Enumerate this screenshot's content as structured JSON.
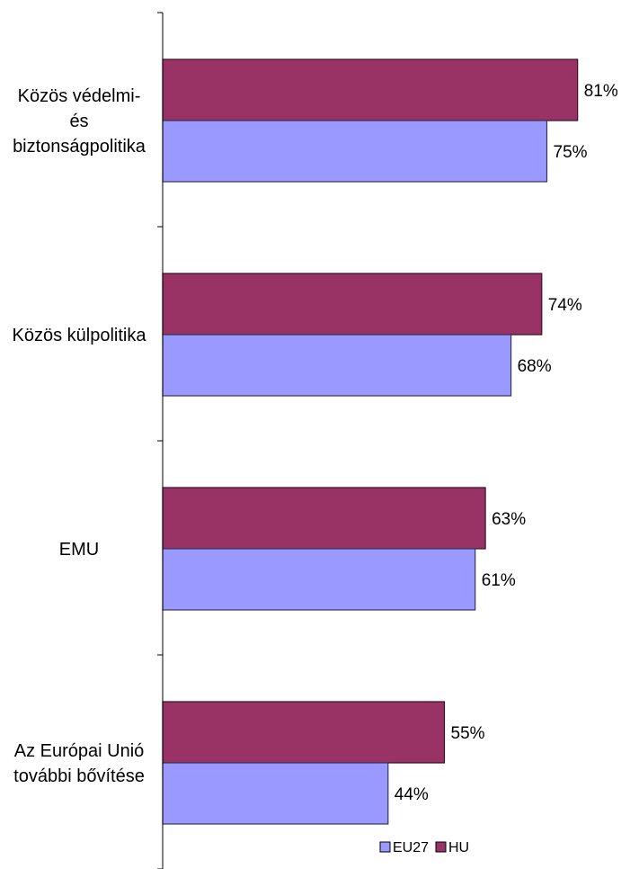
{
  "chart_data": {
    "type": "bar",
    "orientation": "horizontal",
    "title": "",
    "xlabel": "",
    "ylabel": "",
    "categories": [
      "Közös védelmi- és biztonságpolitika",
      "Közös külpolitika",
      "EMU",
      "Az Európai Unió további bővítése"
    ],
    "category_lines": [
      [
        "Közös védelmi-",
        "és",
        "biztonságpolitika"
      ],
      [
        "Közös külpolitika"
      ],
      [
        "EMU"
      ],
      [
        "Az Európai Unió",
        "további bővítése"
      ]
    ],
    "series": [
      {
        "name": "HU",
        "color": "#993366",
        "values": [
          81,
          74,
          63,
          55
        ],
        "labels": [
          "81%",
          "74%",
          "63%",
          "55%"
        ]
      },
      {
        "name": "EU27",
        "color": "#9999ff",
        "values": [
          75,
          68,
          61,
          44
        ],
        "labels": [
          "75%",
          "68%",
          "61%",
          "44%"
        ]
      }
    ],
    "legend": {
      "position": "bottom-right",
      "order": [
        "EU27",
        "HU"
      ]
    },
    "grid": false,
    "xlim": [
      0,
      100
    ],
    "value_format": "percent"
  }
}
